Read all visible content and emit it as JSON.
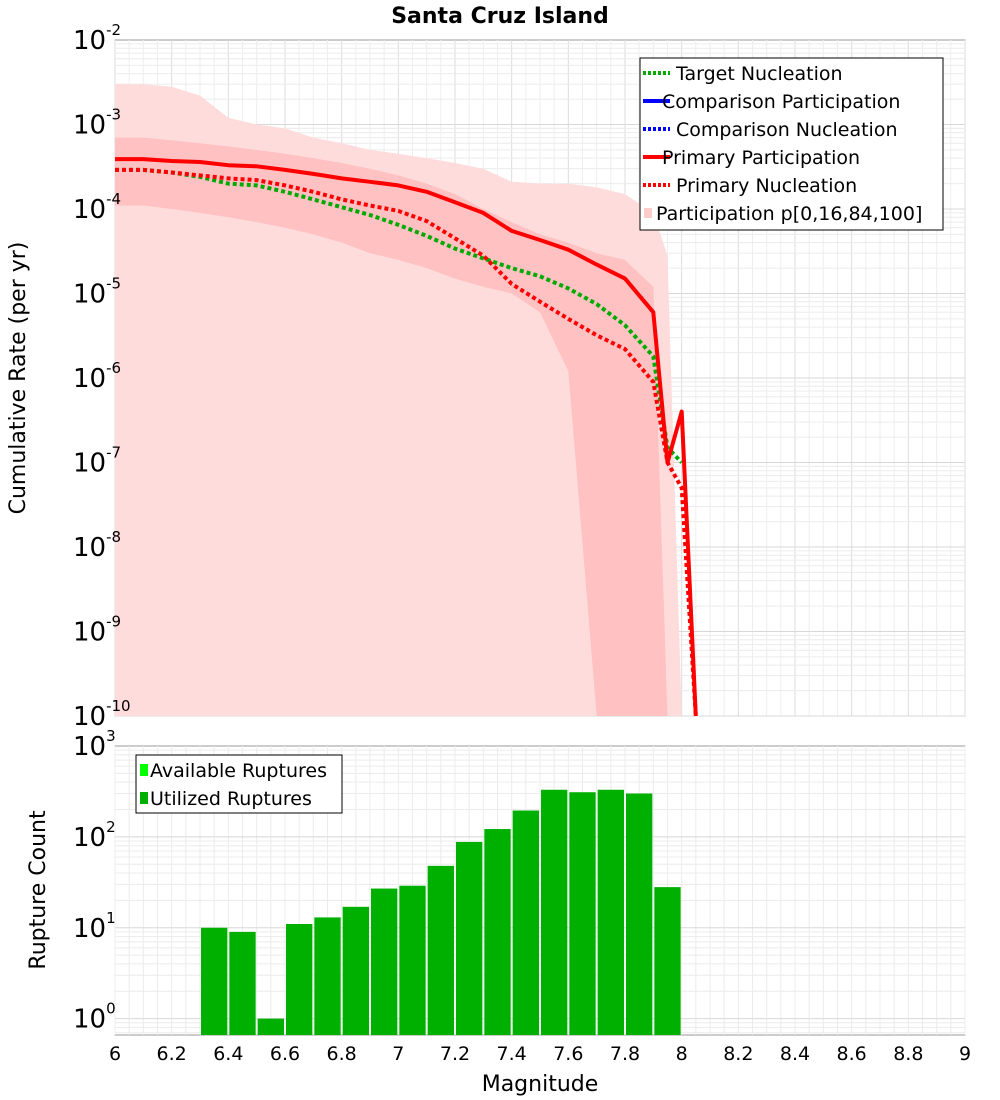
{
  "chart_data": [
    {
      "type": "line",
      "title": "Santa Cruz Island",
      "ylabel": "Cumulative Rate (per yr)",
      "xlim": [
        6,
        9
      ],
      "ylim_log10": [
        -10,
        -2
      ],
      "y_tick_exponents": [
        -2,
        -3,
        -4,
        -5,
        -6,
        -7,
        -8,
        -9,
        -10
      ],
      "y_tick_base": "10",
      "legend": {
        "position": "top-right",
        "entries": [
          {
            "label": "Target Nucleation",
            "color": "#00aa00",
            "style": "dotted"
          },
          {
            "label": "Comparison Participation",
            "color": "#0000ff",
            "style": "solid"
          },
          {
            "label": "Comparison Nucleation",
            "color": "#0000ff",
            "style": "dotted"
          },
          {
            "label": "Primary Participation",
            "color": "#ff0000",
            "style": "solid"
          },
          {
            "label": "Primary Nucleation",
            "color": "#ff0000",
            "style": "dotted"
          },
          {
            "label": "Participation p[0,16,84,100]",
            "color": "#ffd8d8",
            "style": "fill"
          }
        ]
      },
      "bands": {
        "x": [
          6.0,
          6.1,
          6.2,
          6.3,
          6.4,
          6.5,
          6.6,
          6.7,
          6.8,
          6.9,
          7.0,
          7.1,
          7.2,
          7.3,
          7.4,
          7.5,
          7.6,
          7.7,
          7.8,
          7.9
        ],
        "p0": [
          1e-10,
          1e-10,
          1e-10,
          1e-10,
          1e-10,
          1e-10,
          1e-10,
          1e-10,
          1e-10,
          1e-10,
          1e-10,
          1e-10,
          1e-10,
          1e-10,
          1e-10,
          1e-10,
          1e-10,
          1e-10,
          1e-10,
          1e-10
        ],
        "p100": [
          0.003,
          0.003,
          0.0028,
          0.0022,
          0.0012,
          0.001,
          0.0009,
          0.0007,
          0.0006,
          0.0005,
          0.00045,
          0.0004,
          0.00035,
          0.0003,
          0.00021,
          0.0002,
          0.0002,
          0.00018,
          0.00015,
          9e-05
        ],
        "p16": [
          0.00011,
          0.00011,
          0.0001,
          9e-05,
          8e-05,
          7e-05,
          6e-05,
          5e-05,
          4e-05,
          3e-05,
          2.5e-05,
          2e-05,
          1.5e-05,
          1.2e-05,
          1e-05,
          6e-06,
          1.2e-06,
          1e-10,
          1e-10,
          1e-10
        ],
        "p84": [
          0.0007,
          0.0007,
          0.00065,
          0.0006,
          0.00055,
          0.0005,
          0.00045,
          0.0004,
          0.00035,
          0.0003,
          0.00025,
          0.0002,
          0.00015,
          0.0001,
          7e-05,
          5e-05,
          4e-05,
          3e-05,
          2.5e-05,
          1.2e-05
        ],
        "p84_tail": {
          "x": [
            7.9,
            7.95
          ],
          "y": [
            1.2e-05,
            1e-10
          ]
        },
        "p100_tail": {
          "x": [
            7.9,
            7.95,
            8.0
          ],
          "y": [
            9e-05,
            2.8e-05,
            1e-10
          ]
        },
        "p16_tail": {
          "x": [
            7.65,
            7.7
          ],
          "y": [
            1.2e-06,
            1e-10
          ]
        }
      },
      "series": [
        {
          "name": "Primary Participation",
          "color": "#ff0000",
          "style": "solid",
          "x": [
            6.0,
            6.1,
            6.2,
            6.3,
            6.4,
            6.5,
            6.6,
            6.7,
            6.8,
            6.9,
            7.0,
            7.1,
            7.2,
            7.3,
            7.4,
            7.5,
            7.6,
            7.7,
            7.8,
            7.9,
            7.95,
            8.0,
            8.05
          ],
          "y": [
            0.00039,
            0.00039,
            0.00037,
            0.00036,
            0.00033,
            0.00032,
            0.00029,
            0.00026,
            0.00023,
            0.00021,
            0.00019,
            0.00016,
            0.00012,
            9e-05,
            5.5e-05,
            4.3e-05,
            3.3e-05,
            2.2e-05,
            1.5e-05,
            6e-06,
            1e-07,
            4e-07,
            1e-10
          ]
        },
        {
          "name": "Primary Nucleation",
          "color": "#ff0000",
          "style": "dotted",
          "x": [
            6.0,
            6.1,
            6.2,
            6.3,
            6.4,
            6.5,
            6.6,
            6.7,
            6.8,
            6.9,
            7.0,
            7.1,
            7.2,
            7.3,
            7.4,
            7.5,
            7.6,
            7.7,
            7.8,
            7.9,
            7.95,
            8.0,
            8.05
          ],
          "y": [
            0.00029,
            0.00029,
            0.00027,
            0.00025,
            0.00023,
            0.00022,
            0.00019,
            0.00016,
            0.00013,
            0.00011,
            9.5e-05,
            7.2e-05,
            4.5e-05,
            2.8e-05,
            1.3e-05,
            8e-06,
            5e-06,
            3.2e-06,
            2.2e-06,
            9e-07,
            1e-07,
            5e-08,
            1e-10
          ]
        },
        {
          "name": "Target Nucleation",
          "color": "#00aa00",
          "style": "dotted",
          "x": [
            6.0,
            6.1,
            6.2,
            6.3,
            6.4,
            6.5,
            6.6,
            6.7,
            6.8,
            6.9,
            7.0,
            7.1,
            7.2,
            7.3,
            7.4,
            7.5,
            7.6,
            7.7,
            7.8,
            7.9,
            7.95,
            8.0
          ],
          "y": [
            0.00029,
            0.00029,
            0.00027,
            0.00024,
            0.0002,
            0.00019,
            0.00016,
            0.00013,
            0.000105,
            8.5e-05,
            6.5e-05,
            4.8e-05,
            3.4e-05,
            2.6e-05,
            2e-05,
            1.6e-05,
            1.15e-05,
            7.5e-06,
            4.2e-06,
            1.8e-06,
            1.5e-07,
            1e-07
          ]
        }
      ]
    },
    {
      "type": "bar",
      "xlabel": "Magnitude",
      "ylabel": "Rupture Count",
      "xlim": [
        6,
        9
      ],
      "ylim_log10": [
        -0.18,
        3
      ],
      "y_tick_exponents": [
        3,
        2,
        1,
        0
      ],
      "y_tick_base": "10",
      "x_ticks": [
        "6",
        "6.2",
        "6.4",
        "6.6",
        "6.8",
        "7",
        "7.2",
        "7.4",
        "7.6",
        "7.8",
        "8",
        "8.2",
        "8.4",
        "8.6",
        "8.8",
        "9"
      ],
      "legend": {
        "position": "top-left",
        "entries": [
          {
            "label": "Available Ruptures",
            "color": "#00ff00"
          },
          {
            "label": "Utilized Ruptures",
            "color": "#00b000"
          }
        ]
      },
      "bin_width": 0.1,
      "bins": [
        6.35,
        6.45,
        6.55,
        6.65,
        6.75,
        6.85,
        6.95,
        7.05,
        7.15,
        7.25,
        7.35,
        7.45,
        7.55,
        7.65,
        7.75,
        7.85,
        7.95
      ],
      "values": [
        10,
        9,
        1,
        11,
        13,
        17,
        27,
        29,
        48,
        88,
        122,
        195,
        330,
        310,
        330,
        300,
        28
      ]
    }
  ]
}
